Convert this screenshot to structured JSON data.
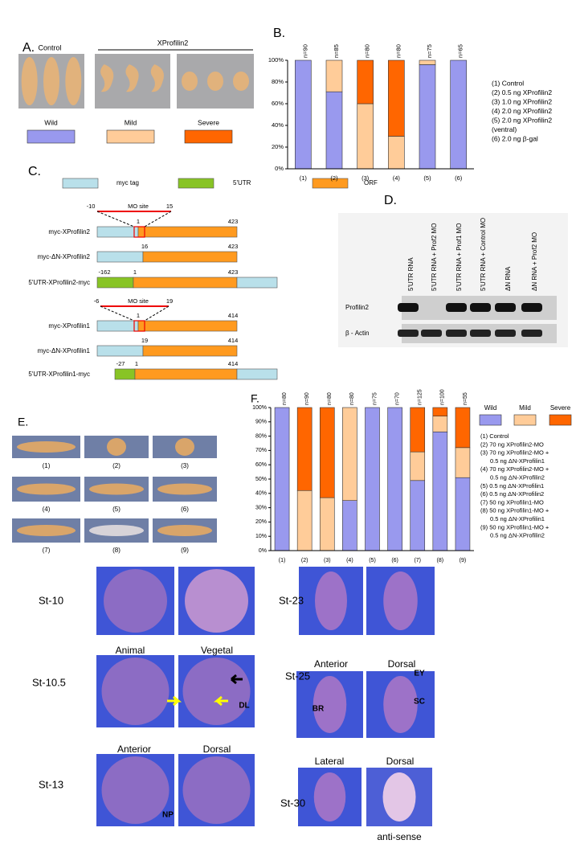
{
  "chart_data": [
    {
      "type": "bar",
      "stacked": true,
      "panel_label": "B.",
      "categories": [
        "(1)",
        "(2)",
        "(3)",
        "(4)",
        "(5)",
        "(6)"
      ],
      "annotations": [
        "n=90",
        "n=85",
        "n=80",
        "n=80",
        "n=75",
        "n=65"
      ],
      "series": [
        {
          "name": "Wild",
          "color": "#9999ee",
          "values": [
            100,
            71,
            0,
            0,
            96,
            100
          ]
        },
        {
          "name": "Mild",
          "color": "#ffcc99",
          "values": [
            0,
            29,
            60,
            30,
            4,
            0
          ]
        },
        {
          "name": "Severe",
          "color": "#ff6600",
          "values": [
            0,
            0,
            40,
            70,
            0,
            0
          ]
        }
      ],
      "ylim": [
        0,
        100
      ],
      "yticks": [
        {
          "value": 0,
          "label": "0%"
        },
        {
          "value": 20,
          "label": "20%"
        },
        {
          "value": 40,
          "label": "40%"
        },
        {
          "value": 60,
          "label": "60%"
        },
        {
          "value": 80,
          "label": "80%"
        },
        {
          "value": 100,
          "label": "100%"
        }
      ],
      "legend_notes": [
        "(1) Control",
        "(2) 0.5 ng XProfilin2",
        "(3) 1.0 ng XProfilin2",
        "(4) 2.0 ng XProfilin2",
        "(5) 2.0 ng XProfilin2",
        "(ventral)",
        "(6) 2.0 ng β-gal"
      ]
    },
    {
      "type": "bar",
      "stacked": true,
      "panel_label": "F.",
      "categories": [
        "(1)",
        "(2)",
        "(3)",
        "(4)",
        "(5)",
        "(6)",
        "(7)",
        "(8)",
        "(9)"
      ],
      "annotations": [
        "n=80",
        "n=90",
        "n=80",
        "n=80",
        "n=75",
        "n=70",
        "n=125",
        "n=100",
        "n=55"
      ],
      "series": [
        {
          "name": "Wild",
          "color": "#9999ee",
          "values": [
            100,
            0,
            0,
            35,
            100,
            100,
            49,
            83,
            51
          ]
        },
        {
          "name": "Mild",
          "color": "#ffcc99",
          "values": [
            0,
            42,
            37,
            65,
            0,
            0,
            20,
            11,
            21
          ]
        },
        {
          "name": "Severe",
          "color": "#ff6600",
          "values": [
            0,
            58,
            63,
            0,
            0,
            0,
            31,
            6,
            28
          ]
        }
      ],
      "ylim": [
        0,
        100
      ],
      "yticks": [
        {
          "value": 0,
          "label": "0%"
        },
        {
          "value": 10,
          "label": "10%"
        },
        {
          "value": 20,
          "label": "20%"
        },
        {
          "value": 30,
          "label": "30%"
        },
        {
          "value": 40,
          "label": "40%"
        },
        {
          "value": 50,
          "label": "50%"
        },
        {
          "value": 60,
          "label": "60%"
        },
        {
          "value": 70,
          "label": "70%"
        },
        {
          "value": 80,
          "label": "80%"
        },
        {
          "value": 90,
          "label": "90%"
        },
        {
          "value": 100,
          "label": "100%"
        }
      ],
      "legend_notes": [
        "(1) Control",
        "(2) 70 ng XProfilin2-MO",
        "(3) 70 ng XProfilin2-MO +",
        "0.5 ng ΔN-XProfilin1",
        "(4) 70 ng XProfilin2-MO +",
        "0.5 ng ΔN-XProfilin2",
        "(5) 0.5 ng ΔN-XProfilin1",
        "(6) 0.5 ng ΔN-XProfilin2",
        "(7) 50 ng XProfilin1-MO",
        "(8) 50 ng XProfilin1-MO +",
        "0.5 ng ΔN-XProfilin1",
        "(9) 50 ng XProfilin1-MO +",
        "0.5 ng ΔN-XProfilin2"
      ]
    }
  ],
  "panel_a": {
    "label": "A.",
    "control": "Control",
    "treatment": "XProfilin2"
  },
  "panel_c": {
    "label": "C.",
    "legend": [
      "myc tag",
      "5'UTR",
      "ORF"
    ],
    "mo_sites": [
      {
        "name": "MO site",
        "start": "-10",
        "end": "15"
      },
      {
        "name": "MO site",
        "start": "-6",
        "end": "19"
      }
    ],
    "constructs": [
      {
        "name": "myc-XProfilin2",
        "positions": [
          "1",
          "423"
        ]
      },
      {
        "name": "myc-ΔN-XProfilin2",
        "positions": [
          "16",
          "423"
        ]
      },
      {
        "name": "5'UTR-XProfilin2-myc",
        "positions": [
          "-162",
          "1",
          "423"
        ]
      },
      {
        "name": "myc-XProfilin1",
        "positions": [
          "1",
          "414"
        ]
      },
      {
        "name": "myc-ΔN-XProfilin1",
        "positions": [
          "19",
          "414"
        ]
      },
      {
        "name": "5'UTR-XProfilin1-myc",
        "positions": [
          "-27",
          "1",
          "414"
        ]
      }
    ]
  },
  "panel_d": {
    "label": "D.",
    "lanes": [
      "5'UTR RNA",
      "5'UTR RNA + Prof2 MO",
      "5'UTR RNA + Prof1 MO",
      "5'UTR RNA + Control MO",
      "ΔN RNA",
      "ΔN RNA + Prof2 MO"
    ],
    "rows": [
      "Profilin2",
      "β - Actin"
    ]
  },
  "panel_e": {
    "label": "E.",
    "captions": [
      "(1)",
      "(2)",
      "(3)",
      "(4)",
      "(5)",
      "(6)",
      "(7)",
      "(8)",
      "(9)"
    ]
  },
  "in_situ": {
    "stages": [
      "St-10",
      "St-10.5",
      "St-13",
      "St-23",
      "St-25",
      "St-30"
    ],
    "views": [
      "Animal",
      "Vegetal",
      "Anterior",
      "Dorsal",
      "Anterior",
      "Dorsal",
      "Lateral",
      "Dorsal"
    ],
    "markers": [
      "DL",
      "NP",
      "EY",
      "SC",
      "BR"
    ],
    "probe": "anti-sense"
  }
}
